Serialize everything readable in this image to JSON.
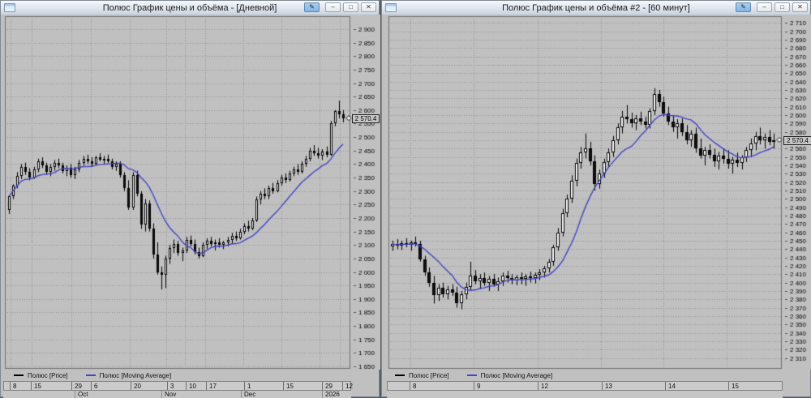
{
  "icons": {
    "tool": "✎",
    "minimize": "–",
    "restore": "□",
    "close": "✕"
  },
  "windows": [
    {
      "title": "Полюс График цены и объёма - [Дневной]",
      "current_price": "2 570.4",
      "legend": [
        {
          "label": "Полюс [Price]",
          "color": "#000000"
        },
        {
          "label": "Полюс [Moving Average]",
          "color": "#4343c8"
        }
      ]
    },
    {
      "title": "Полюс График цены и объёма #2 - [60 минут]",
      "current_price": "2 570.4",
      "legend": [
        {
          "label": "Полюс [Price]",
          "color": "#000000"
        },
        {
          "label": "Полюс [Moving Average]",
          "color": "#4343c8"
        }
      ]
    }
  ],
  "chart_data": [
    {
      "type": "candlestick",
      "title": "Полюс График цены и объёма - [Дневной]",
      "instrument": "Полюс",
      "timeframe": "Дневной",
      "last_price": 2570.4,
      "ma_period": 12,
      "y_axis": {
        "min": 1650,
        "max": 2900,
        "step": 50,
        "top": 2948,
        "bottom": 1644
      },
      "x_ticks": {
        "labels": [
          "8",
          "15",
          "29",
          "6",
          "20",
          "3",
          "10",
          "17",
          "1",
          "15",
          "29",
          "12"
        ],
        "fractions": [
          0.016,
          0.077,
          0.194,
          0.25,
          0.363,
          0.468,
          0.522,
          0.581,
          0.691,
          0.803,
          0.913,
          0.972
        ]
      },
      "months": {
        "labels": [
          "Oct",
          "Nov",
          "Dec",
          "2026"
        ],
        "fractions": [
          0.205,
          0.455,
          0.683,
          0.915
        ]
      },
      "colors": {
        "up": "#ffffff",
        "down": "#111111",
        "ma": "#4343c8",
        "grid": "#8f8f8f",
        "bg": "#c0c0c0",
        "border": "#6f6f6f"
      },
      "ohlc": [
        [
          2230,
          2285,
          2215,
          2280
        ],
        [
          2280,
          2325,
          2270,
          2320
        ],
        [
          2320,
          2370,
          2310,
          2355
        ],
        [
          2355,
          2400,
          2345,
          2390
        ],
        [
          2390,
          2405,
          2360,
          2370
        ],
        [
          2370,
          2385,
          2340,
          2350
        ],
        [
          2350,
          2390,
          2345,
          2380
        ],
        [
          2380,
          2420,
          2370,
          2410
        ],
        [
          2410,
          2425,
          2385,
          2395
        ],
        [
          2395,
          2405,
          2360,
          2370
        ],
        [
          2370,
          2400,
          2355,
          2390
        ],
        [
          2390,
          2415,
          2375,
          2405
        ],
        [
          2405,
          2420,
          2385,
          2395
        ],
        [
          2395,
          2405,
          2365,
          2375
        ],
        [
          2375,
          2395,
          2355,
          2385
        ],
        [
          2385,
          2400,
          2350,
          2360
        ],
        [
          2360,
          2390,
          2345,
          2380
        ],
        [
          2380,
          2415,
          2370,
          2405
        ],
        [
          2405,
          2430,
          2395,
          2420
        ],
        [
          2420,
          2435,
          2400,
          2410
        ],
        [
          2410,
          2425,
          2390,
          2400
        ],
        [
          2400,
          2430,
          2395,
          2425
        ],
        [
          2425,
          2440,
          2410,
          2415
        ],
        [
          2415,
          2430,
          2400,
          2420
        ],
        [
          2420,
          2435,
          2405,
          2410
        ],
        [
          2410,
          2420,
          2380,
          2390
        ],
        [
          2390,
          2410,
          2375,
          2400
        ],
        [
          2400,
          2410,
          2350,
          2360
        ],
        [
          2360,
          2370,
          2300,
          2310
        ],
        [
          2310,
          2340,
          2230,
          2240
        ],
        [
          2240,
          2370,
          2230,
          2360
        ],
        [
          2360,
          2375,
          2280,
          2290
        ],
        [
          2290,
          2300,
          2160,
          2175
        ],
        [
          2175,
          2270,
          2150,
          2255
        ],
        [
          2255,
          2265,
          2150,
          2160
        ],
        [
          2160,
          2180,
          2050,
          2065
        ],
        [
          2065,
          2110,
          1990,
          2000
        ],
        [
          2000,
          2020,
          1935,
          1990
        ],
        [
          1990,
          2060,
          1940,
          2050
        ],
        [
          2050,
          2100,
          2030,
          2090
        ],
        [
          2090,
          2120,
          2070,
          2105
        ],
        [
          2105,
          2115,
          2060,
          2070
        ],
        [
          2070,
          2090,
          2040,
          2080
        ],
        [
          2080,
          2130,
          2070,
          2120
        ],
        [
          2120,
          2135,
          2095,
          2105
        ],
        [
          2105,
          2120,
          2065,
          2075
        ],
        [
          2075,
          2090,
          2050,
          2060
        ],
        [
          2060,
          2110,
          2055,
          2100
        ],
        [
          2100,
          2125,
          2085,
          2115
        ],
        [
          2115,
          2130,
          2095,
          2105
        ],
        [
          2105,
          2120,
          2080,
          2110
        ],
        [
          2110,
          2125,
          2090,
          2100
        ],
        [
          2100,
          2115,
          2085,
          2110
        ],
        [
          2110,
          2130,
          2095,
          2120
        ],
        [
          2120,
          2145,
          2105,
          2135
        ],
        [
          2135,
          2150,
          2115,
          2125
        ],
        [
          2125,
          2160,
          2120,
          2150
        ],
        [
          2150,
          2180,
          2140,
          2170
        ],
        [
          2170,
          2190,
          2150,
          2160
        ],
        [
          2160,
          2200,
          2155,
          2190
        ],
        [
          2190,
          2280,
          2185,
          2270
        ],
        [
          2270,
          2300,
          2250,
          2290
        ],
        [
          2290,
          2310,
          2270,
          2280
        ],
        [
          2280,
          2320,
          2270,
          2310
        ],
        [
          2310,
          2330,
          2290,
          2300
        ],
        [
          2300,
          2340,
          2295,
          2330
        ],
        [
          2330,
          2360,
          2320,
          2350
        ],
        [
          2350,
          2365,
          2330,
          2340
        ],
        [
          2340,
          2375,
          2335,
          2365
        ],
        [
          2365,
          2390,
          2355,
          2380
        ],
        [
          2380,
          2400,
          2360,
          2370
        ],
        [
          2370,
          2410,
          2365,
          2400
        ],
        [
          2400,
          2430,
          2390,
          2420
        ],
        [
          2420,
          2460,
          2410,
          2450
        ],
        [
          2450,
          2470,
          2430,
          2440
        ],
        [
          2440,
          2460,
          2420,
          2430
        ],
        [
          2430,
          2455,
          2415,
          2445
        ],
        [
          2445,
          2465,
          2425,
          2435
        ],
        [
          2435,
          2560,
          2430,
          2550
        ],
        [
          2550,
          2600,
          2540,
          2595
        ],
        [
          2595,
          2635,
          2570,
          2585
        ],
        [
          2585,
          2600,
          2555,
          2570.4
        ]
      ]
    },
    {
      "type": "candlestick",
      "title": "Полюс График цены и объёма #2 - [60 минут]",
      "instrument": "Полюс",
      "timeframe": "60 минут",
      "last_price": 2570.4,
      "ma_period": 10,
      "y_axis": {
        "min": 2310,
        "max": 2710,
        "step": 10,
        "top": 2718,
        "bottom": 2298
      },
      "x_ticks": {
        "labels": [
          "8",
          "9",
          "12",
          "13",
          "14",
          "15"
        ],
        "fractions": [
          0.056,
          0.217,
          0.38,
          0.541,
          0.7,
          0.861
        ]
      },
      "months": {
        "labels": [],
        "fractions": []
      },
      "colors": {
        "up": "#ffffff",
        "down": "#111111",
        "ma": "#4343c8",
        "grid": "#8f8f8f",
        "bg": "#c0c0c0",
        "border": "#6f6f6f"
      },
      "ohlc": [
        [
          2443,
          2450,
          2438,
          2446
        ],
        [
          2446,
          2452,
          2440,
          2444
        ],
        [
          2444,
          2450,
          2439,
          2447
        ],
        [
          2447,
          2453,
          2442,
          2445
        ],
        [
          2445,
          2450,
          2438,
          2448
        ],
        [
          2448,
          2455,
          2443,
          2446
        ],
        [
          2446,
          2450,
          2425,
          2428
        ],
        [
          2428,
          2432,
          2408,
          2412
        ],
        [
          2412,
          2418,
          2395,
          2400
        ],
        [
          2400,
          2408,
          2375,
          2385
        ],
        [
          2385,
          2398,
          2378,
          2394
        ],
        [
          2394,
          2400,
          2382,
          2386
        ],
        [
          2386,
          2396,
          2380,
          2392
        ],
        [
          2392,
          2398,
          2384,
          2388
        ],
        [
          2388,
          2395,
          2370,
          2375
        ],
        [
          2375,
          2390,
          2368,
          2386
        ],
        [
          2386,
          2400,
          2380,
          2395
        ],
        [
          2395,
          2425,
          2390,
          2408
        ],
        [
          2408,
          2415,
          2398,
          2402
        ],
        [
          2402,
          2410,
          2392,
          2405
        ],
        [
          2405,
          2412,
          2396,
          2400
        ],
        [
          2400,
          2408,
          2390,
          2404
        ],
        [
          2404,
          2410,
          2395,
          2398
        ],
        [
          2398,
          2406,
          2390,
          2402
        ],
        [
          2402,
          2412,
          2396,
          2408
        ],
        [
          2408,
          2414,
          2400,
          2405
        ],
        [
          2405,
          2410,
          2398,
          2403
        ],
        [
          2403,
          2409,
          2397,
          2406
        ],
        [
          2406,
          2412,
          2398,
          2404
        ],
        [
          2404,
          2410,
          2396,
          2407
        ],
        [
          2407,
          2413,
          2400,
          2405
        ],
        [
          2405,
          2412,
          2399,
          2409
        ],
        [
          2409,
          2416,
          2403,
          2412
        ],
        [
          2412,
          2420,
          2406,
          2417
        ],
        [
          2417,
          2428,
          2412,
          2425
        ],
        [
          2425,
          2445,
          2420,
          2442
        ],
        [
          2442,
          2465,
          2438,
          2460
        ],
        [
          2460,
          2488,
          2455,
          2483
        ],
        [
          2483,
          2505,
          2478,
          2500
        ],
        [
          2500,
          2528,
          2495,
          2522
        ],
        [
          2522,
          2548,
          2515,
          2543
        ],
        [
          2543,
          2562,
          2536,
          2555
        ],
        [
          2555,
          2578,
          2548,
          2560
        ],
        [
          2560,
          2568,
          2540,
          2545
        ],
        [
          2545,
          2552,
          2510,
          2518
        ],
        [
          2518,
          2535,
          2512,
          2530
        ],
        [
          2530,
          2548,
          2525,
          2544
        ],
        [
          2544,
          2560,
          2538,
          2555
        ],
        [
          2555,
          2575,
          2550,
          2570
        ],
        [
          2570,
          2590,
          2565,
          2585
        ],
        [
          2585,
          2605,
          2578,
          2598
        ],
        [
          2598,
          2612,
          2590,
          2595
        ],
        [
          2595,
          2603,
          2585,
          2590
        ],
        [
          2590,
          2600,
          2582,
          2596
        ],
        [
          2596,
          2604,
          2588,
          2592
        ],
        [
          2592,
          2598,
          2584,
          2588
        ],
        [
          2588,
          2608,
          2584,
          2605
        ],
        [
          2605,
          2632,
          2600,
          2625
        ],
        [
          2625,
          2630,
          2610,
          2615
        ],
        [
          2615,
          2622,
          2598,
          2602
        ],
        [
          2602,
          2610,
          2588,
          2592
        ],
        [
          2592,
          2600,
          2580,
          2585
        ],
        [
          2585,
          2595,
          2572,
          2590
        ],
        [
          2590,
          2596,
          2575,
          2580
        ],
        [
          2580,
          2588,
          2565,
          2570
        ],
        [
          2570,
          2582,
          2562,
          2578
        ],
        [
          2578,
          2585,
          2555,
          2560
        ],
        [
          2560,
          2572,
          2548,
          2552
        ],
        [
          2552,
          2562,
          2540,
          2558
        ],
        [
          2558,
          2565,
          2548,
          2553
        ],
        [
          2553,
          2560,
          2538,
          2545
        ],
        [
          2545,
          2556,
          2535,
          2552
        ],
        [
          2552,
          2560,
          2542,
          2548
        ],
        [
          2548,
          2558,
          2536,
          2542
        ],
        [
          2542,
          2550,
          2530,
          2547
        ],
        [
          2547,
          2555,
          2538,
          2543
        ],
        [
          2543,
          2552,
          2535,
          2550
        ],
        [
          2550,
          2562,
          2544,
          2558
        ],
        [
          2558,
          2572,
          2550,
          2566
        ],
        [
          2566,
          2580,
          2558,
          2575
        ],
        [
          2575,
          2585,
          2565,
          2570
        ],
        [
          2570,
          2578,
          2560,
          2574
        ],
        [
          2574,
          2582,
          2564,
          2568
        ],
        [
          2568,
          2578,
          2560,
          2570.4
        ]
      ]
    }
  ]
}
